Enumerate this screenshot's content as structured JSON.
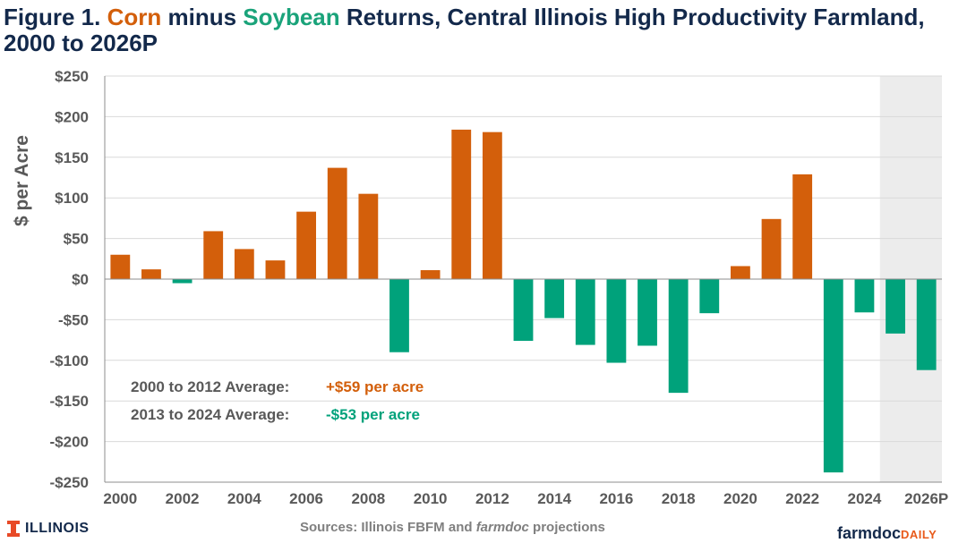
{
  "title": {
    "prefix": "Figure 1. ",
    "corn": "Corn",
    "minus": " minus ",
    "soybean": "Soybean",
    "rest": " Returns, Central Illinois High Productivity Farmland, 2000 to 2026P"
  },
  "chart_data": {
    "type": "bar",
    "ylabel": "$ per Acre",
    "ylim": [
      -250,
      250
    ],
    "yticks": [
      250,
      200,
      150,
      100,
      50,
      0,
      -50,
      -100,
      -150,
      -200,
      -250
    ],
    "ytick_labels": [
      "$250",
      "$200",
      "$150",
      "$100",
      "$50",
      "$0",
      "-$50",
      "-$100",
      "-$150",
      "-$200",
      "-$250"
    ],
    "categories": [
      "2000",
      "2001",
      "2002",
      "2003",
      "2004",
      "2005",
      "2006",
      "2007",
      "2008",
      "2009",
      "2010",
      "2011",
      "2012",
      "2013",
      "2014",
      "2015",
      "2016",
      "2017",
      "2018",
      "2019",
      "2020",
      "2021",
      "2022",
      "2023",
      "2024",
      "2025",
      "2026P"
    ],
    "xtick_labels": [
      "2000",
      "",
      "2002",
      "",
      "2004",
      "",
      "2006",
      "",
      "2008",
      "",
      "2010",
      "",
      "2012",
      "",
      "2014",
      "",
      "2016",
      "",
      "2018",
      "",
      "2020",
      "",
      "2022",
      "",
      "2024",
      "",
      "2026P"
    ],
    "values": [
      30,
      12,
      -5,
      59,
      37,
      23,
      83,
      137,
      105,
      -90,
      11,
      184,
      181,
      -76,
      -48,
      -81,
      -103,
      -82,
      -140,
      -42,
      16,
      74,
      129,
      -238,
      -41,
      -67,
      -112
    ],
    "projected_region": [
      "2025",
      "2026P"
    ],
    "colors": {
      "positive": "#d35f0b",
      "negative": "#00a27b",
      "projected_band": "#ececec",
      "grid": "#d9d9d9",
      "axis_text": "#595959"
    },
    "annotations": [
      {
        "label": "2000 to 2012 Average:",
        "value": "+$59 per acre",
        "color": "#d35f0b"
      },
      {
        "label": "2013 to 2024 Average:",
        "value": "-$53 per acre",
        "color": "#00a27b"
      }
    ]
  },
  "footer": {
    "university": "ILLINOIS",
    "sources_prefix": "Sources: Illinois  FBFM and ",
    "sources_italic": "farmdoc",
    "sources_suffix": " projections",
    "logo_main": "farmdoc",
    "logo_sub": "DAILY"
  }
}
